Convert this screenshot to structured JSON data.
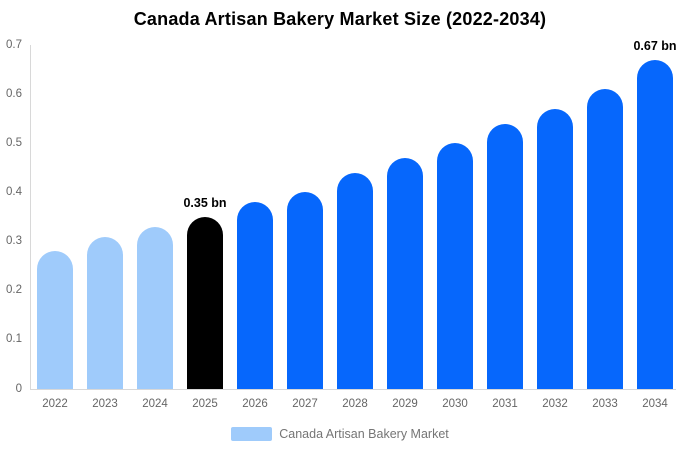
{
  "title": "Canada Artisan Bakery Market Size (2022-2034)",
  "legend": {
    "label": "Canada Artisan Bakery Market",
    "swatch_color": "#9fcbfb"
  },
  "chart_data": {
    "type": "bar",
    "title": "Canada Artisan Bakery Market Size (2022-2034)",
    "unit": "bn",
    "categories": [
      "2022",
      "2023",
      "2024",
      "2025",
      "2026",
      "2027",
      "2028",
      "2029",
      "2030",
      "2031",
      "2032",
      "2033",
      "2034"
    ],
    "values": [
      0.28,
      0.31,
      0.33,
      0.35,
      0.38,
      0.4,
      0.44,
      0.47,
      0.5,
      0.54,
      0.57,
      0.61,
      0.67
    ],
    "bar_roles": [
      "historical",
      "historical",
      "historical",
      "highlight",
      "forecast",
      "forecast",
      "forecast",
      "forecast",
      "forecast",
      "forecast",
      "forecast",
      "forecast",
      "forecast"
    ],
    "colors": {
      "historical": "#9fcbfb",
      "highlight": "#000000",
      "forecast": "#0667fc"
    },
    "annotations": [
      {
        "category": "2025",
        "text": "0.35 bn"
      },
      {
        "category": "2034",
        "text": "0.67 bn"
      }
    ],
    "xlabel": "",
    "ylabel": "",
    "ylim": [
      0,
      0.7
    ],
    "ytick_labels": [
      "0",
      "0.1",
      "0.2",
      "0.3",
      "0.4",
      "0.5",
      "0.6",
      "0.7"
    ],
    "grid": false,
    "legend_position": "bottom",
    "axis_line_color": "#d8d8d8",
    "tick_label_color": "#666666"
  }
}
